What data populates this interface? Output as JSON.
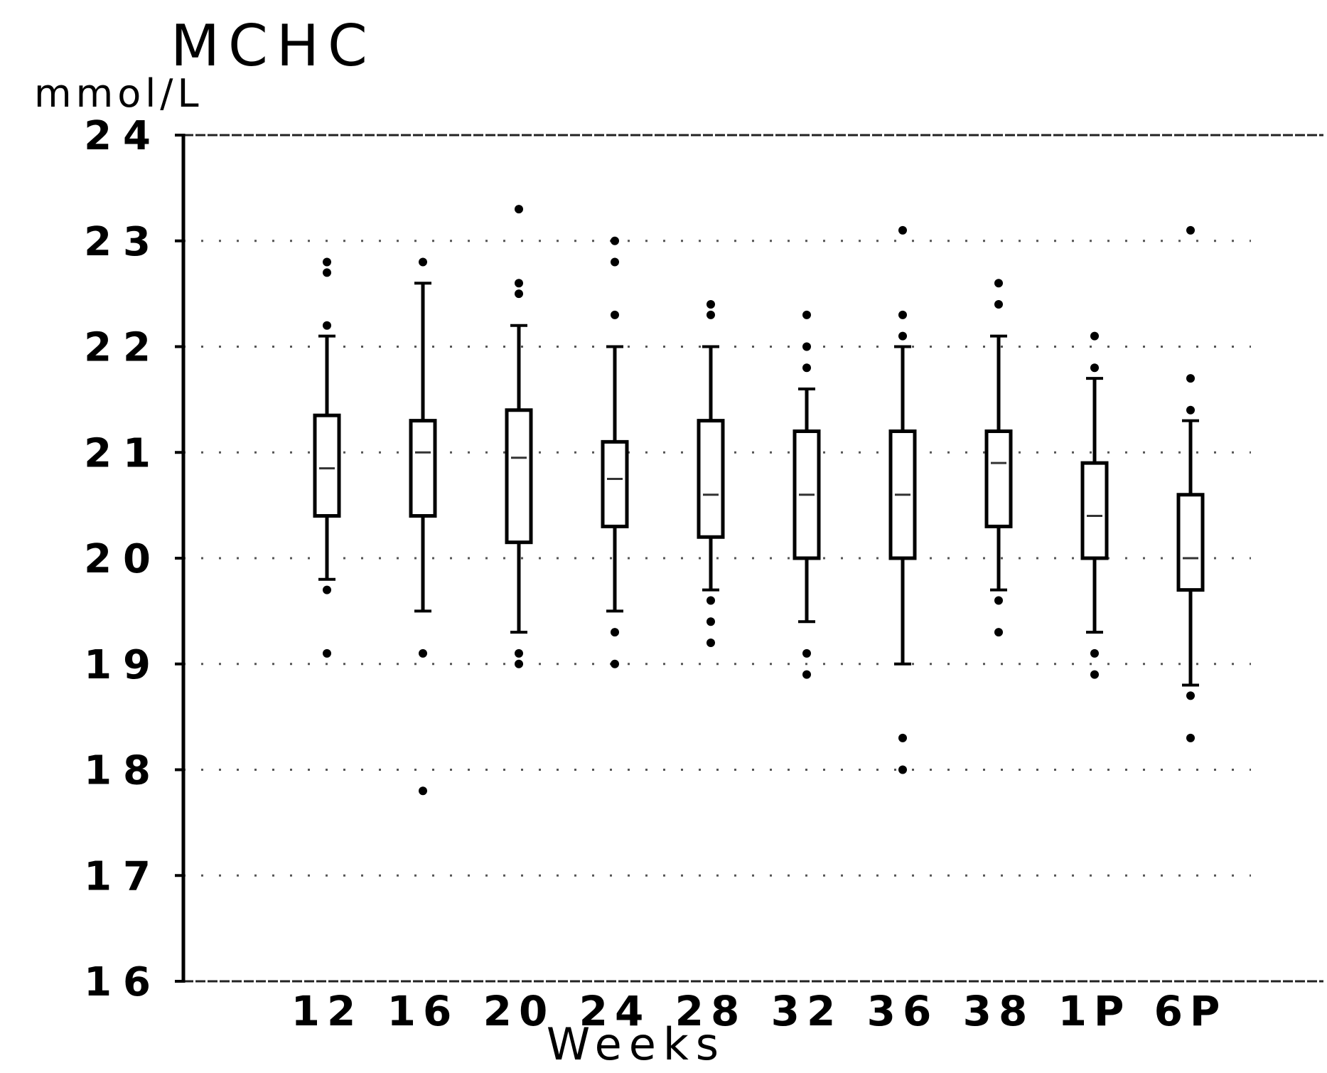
{
  "chart_data": {
    "type": "boxplot",
    "title": "MCHC",
    "ylabel": "mmol/L",
    "xlabel": "Weeks",
    "ylim": [
      16,
      24
    ],
    "yticks": [
      16,
      17,
      18,
      19,
      20,
      21,
      22,
      23,
      24
    ],
    "grid": "dotted horizontal",
    "categories": [
      "12",
      "16",
      "20",
      "24",
      "28",
      "32",
      "36",
      "38",
      "1P",
      "6P"
    ],
    "boxes": [
      {
        "q1": 20.4,
        "median": 20.85,
        "q3": 21.35,
        "whisker_low": 19.8,
        "whisker_high": 22.1,
        "outliers": [
          19.7,
          19.1,
          22.2,
          22.7,
          22.8
        ]
      },
      {
        "q1": 20.4,
        "median": 21.0,
        "q3": 21.3,
        "whisker_low": 19.5,
        "whisker_high": 22.6,
        "outliers": [
          19.1,
          17.8,
          22.8
        ]
      },
      {
        "q1": 20.15,
        "median": 20.95,
        "q3": 21.4,
        "whisker_low": 19.3,
        "whisker_high": 22.2,
        "outliers": [
          19.1,
          19.0,
          22.5,
          22.6,
          23.3
        ]
      },
      {
        "q1": 20.3,
        "median": 20.75,
        "q3": 21.1,
        "whisker_low": 19.5,
        "whisker_high": 22.0,
        "outliers": [
          19.3,
          19.0,
          22.3,
          22.8,
          23.0
        ]
      },
      {
        "q1": 20.2,
        "median": 20.6,
        "q3": 21.3,
        "whisker_low": 19.7,
        "whisker_high": 22.0,
        "outliers": [
          19.6,
          19.4,
          19.2,
          22.3,
          22.4
        ]
      },
      {
        "q1": 20.0,
        "median": 20.6,
        "q3": 21.2,
        "whisker_low": 19.4,
        "whisker_high": 21.6,
        "outliers": [
          19.1,
          18.9,
          21.8,
          22.0,
          22.3
        ]
      },
      {
        "q1": 20.0,
        "median": 20.6,
        "q3": 21.2,
        "whisker_low": 19.0,
        "whisker_high": 22.0,
        "outliers": [
          18.3,
          18.0,
          22.1,
          22.3,
          23.1
        ]
      },
      {
        "q1": 20.3,
        "median": 20.9,
        "q3": 21.2,
        "whisker_low": 19.7,
        "whisker_high": 22.1,
        "outliers": [
          19.6,
          19.3,
          22.4,
          22.6
        ]
      },
      {
        "q1": 20.0,
        "median": 20.4,
        "q3": 20.9,
        "whisker_low": 19.3,
        "whisker_high": 21.7,
        "outliers": [
          19.1,
          18.9,
          21.8,
          22.1
        ]
      },
      {
        "q1": 19.7,
        "median": 20.0,
        "q3": 20.6,
        "whisker_low": 18.8,
        "whisker_high": 21.3,
        "outliers": [
          18.7,
          18.3,
          21.4,
          21.7,
          23.1
        ]
      }
    ]
  }
}
